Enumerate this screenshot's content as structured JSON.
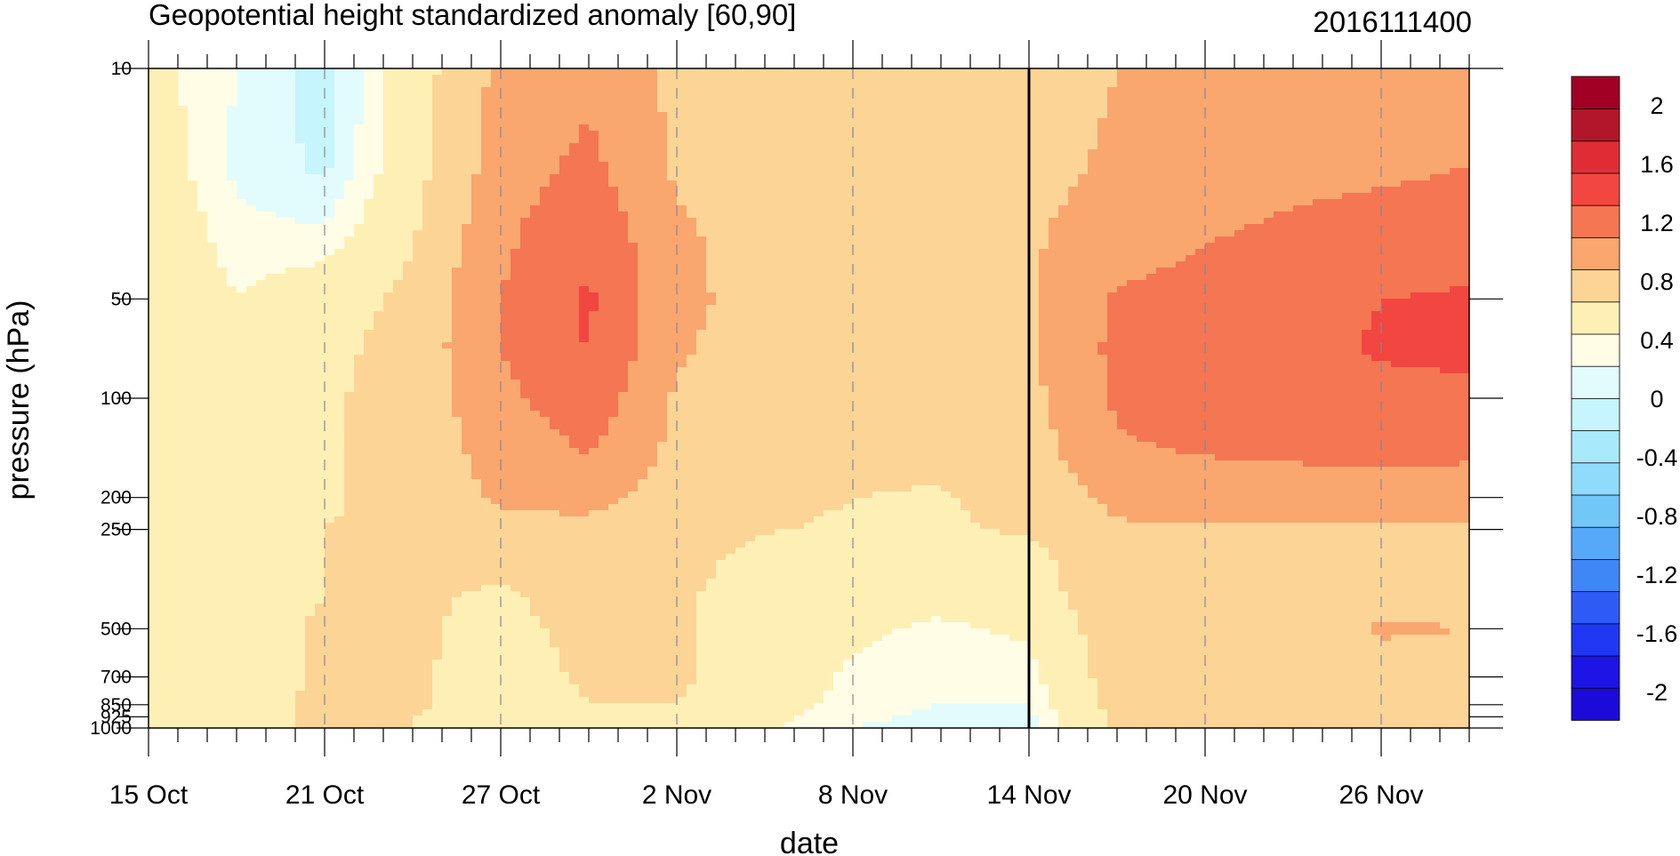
{
  "chart_data": {
    "type": "heatmap",
    "title": "Geopotential height standardized anomaly [60,90]",
    "subtitle": "2016111400",
    "xlabel": "date",
    "ylabel": "pressure (hPa)",
    "x_ticks": [
      {
        "day": 0,
        "label": "15 Oct"
      },
      {
        "day": 6,
        "label": "21 Oct"
      },
      {
        "day": 12,
        "label": "27 Oct"
      },
      {
        "day": 18,
        "label": "2 Nov"
      },
      {
        "day": 24,
        "label": "8 Nov"
      },
      {
        "day": 30,
        "label": "14 Nov"
      },
      {
        "day": 36,
        "label": "20 Nov"
      },
      {
        "day": 42,
        "label": "26 Nov"
      }
    ],
    "x_range_days": [
      0,
      45
    ],
    "reference_day": 30,
    "y_ticks": [
      {
        "p": 10,
        "label": "10"
      },
      {
        "p": 50,
        "label": "50"
      },
      {
        "p": 100,
        "label": "100"
      },
      {
        "p": 200,
        "label": "200"
      },
      {
        "p": 250,
        "label": "250"
      },
      {
        "p": 500,
        "label": "500"
      },
      {
        "p": 700,
        "label": "700"
      },
      {
        "p": 850,
        "label": "850"
      },
      {
        "p": 925,
        "label": "925"
      },
      {
        "p": 1000,
        "label": "1000"
      }
    ],
    "y_range_hpa": [
      1000,
      10
    ],
    "y_scale": "log",
    "pressure_levels": [
      10,
      20,
      30,
      50,
      70,
      100,
      150,
      200,
      250,
      300,
      400,
      500,
      700,
      850,
      925,
      1000
    ],
    "days": [
      0,
      3,
      6,
      9,
      12,
      15,
      18,
      21,
      24,
      27,
      30,
      33,
      36,
      39,
      42,
      45
    ],
    "z": [
      [
        0.1,
        -0.2,
        -0.5,
        0.2,
        0.9,
        1.1,
        0.7,
        0.6,
        0.55,
        0.6,
        0.65,
        0.8,
        0.9,
        1.0,
        1.05,
        1.1
      ],
      [
        0.2,
        -0.25,
        -0.45,
        0.25,
        1.0,
        1.3,
        0.75,
        0.62,
        0.55,
        0.6,
        0.7,
        0.85,
        1.0,
        1.1,
        1.15,
        1.2
      ],
      [
        0.3,
        -0.15,
        -0.2,
        0.35,
        1.1,
        1.5,
        0.85,
        0.65,
        0.57,
        0.6,
        0.75,
        0.95,
        1.15,
        1.25,
        1.3,
        1.35
      ],
      [
        0.35,
        0.0,
        0.2,
        0.5,
        1.2,
        1.65,
        0.9,
        0.65,
        0.58,
        0.6,
        0.75,
        1.25,
        1.35,
        1.5,
        1.6,
        1.65
      ],
      [
        0.4,
        0.05,
        0.3,
        0.55,
        1.2,
        1.62,
        0.85,
        0.62,
        0.58,
        0.58,
        0.73,
        1.3,
        1.4,
        1.55,
        1.62,
        1.65
      ],
      [
        0.35,
        0.1,
        0.35,
        0.55,
        1.1,
        1.45,
        0.75,
        0.58,
        0.52,
        0.55,
        0.7,
        1.25,
        1.4,
        1.5,
        1.55,
        1.55
      ],
      [
        0.35,
        0.15,
        0.35,
        0.55,
        0.95,
        1.2,
        0.7,
        0.55,
        0.45,
        0.45,
        0.6,
        1.15,
        1.2,
        1.25,
        1.3,
        1.25
      ],
      [
        0.3,
        0.2,
        0.35,
        0.55,
        0.85,
        0.9,
        0.62,
        0.5,
        0.4,
        0.38,
        0.5,
        0.9,
        0.95,
        0.95,
        0.95,
        0.95
      ],
      [
        0.3,
        0.25,
        0.4,
        0.5,
        0.7,
        0.72,
        0.55,
        0.42,
        0.35,
        0.35,
        0.45,
        0.75,
        0.78,
        0.78,
        0.78,
        0.78
      ],
      [
        0.3,
        0.25,
        0.4,
        0.45,
        0.5,
        0.6,
        0.5,
        0.32,
        0.2,
        0.25,
        0.3,
        0.7,
        0.75,
        0.75,
        0.75,
        0.75
      ],
      [
        0.3,
        0.25,
        0.4,
        0.45,
        0.35,
        0.55,
        0.45,
        0.25,
        0.1,
        0.1,
        0.2,
        0.68,
        0.72,
        0.72,
        0.75,
        0.75
      ],
      [
        0.3,
        0.25,
        0.45,
        0.45,
        0.3,
        0.5,
        0.45,
        0.25,
        0.05,
        -0.05,
        0.05,
        0.65,
        0.7,
        0.72,
        0.82,
        0.8
      ],
      [
        0.3,
        0.25,
        0.45,
        0.45,
        0.25,
        0.45,
        0.45,
        0.2,
        -0.05,
        -0.1,
        -0.1,
        0.6,
        0.68,
        0.7,
        0.72,
        0.72
      ],
      [
        0.35,
        0.3,
        0.45,
        0.45,
        0.2,
        0.4,
        0.4,
        0.15,
        -0.1,
        -0.2,
        -0.2,
        0.55,
        0.62,
        0.62,
        0.62,
        0.62
      ],
      [
        0.35,
        0.3,
        0.45,
        0.4,
        0.1,
        0.35,
        0.35,
        0.1,
        -0.15,
        -0.25,
        -0.25,
        0.5,
        0.55,
        0.55,
        0.55,
        0.55
      ],
      [
        0.35,
        0.3,
        0.45,
        0.4,
        0.0,
        0.35,
        0.35,
        0.05,
        -0.2,
        -0.3,
        -0.3,
        0.45,
        0.5,
        0.5,
        0.5,
        0.5
      ]
    ],
    "colorbar": {
      "labels": [
        "2",
        "1.6",
        "1.2",
        "0.8",
        "0.4",
        "0",
        "-0.4",
        "-0.8",
        "-1.2",
        "-1.6",
        "-2"
      ],
      "label_values": [
        2,
        1.6,
        1.2,
        0.8,
        0.4,
        0,
        -0.4,
        -0.8,
        -1.2,
        -1.6,
        -2
      ],
      "levels": [
        -2.2,
        -2.0,
        -1.8,
        -1.6,
        -1.4,
        -1.2,
        -1.0,
        -0.8,
        -0.6,
        -0.4,
        -0.2,
        0.0,
        0.4,
        0.8,
        1.2,
        1.6,
        2.0,
        2.2
      ],
      "colors": [
        "#1c0ad8",
        "#1d14e6",
        "#1f37f0",
        "#2e5bf5",
        "#3f86f7",
        "#56a8f8",
        "#72c7f9",
        "#8fdbfb",
        "#a9e9fc",
        "#c6f5fd",
        "#e2fcfd",
        "#fffde6",
        "#fef0b5",
        "#fcd496",
        "#f9a66f",
        "#f47653",
        "#f24640",
        "#e02d35",
        "#b2162a",
        "#a10024"
      ]
    }
  }
}
